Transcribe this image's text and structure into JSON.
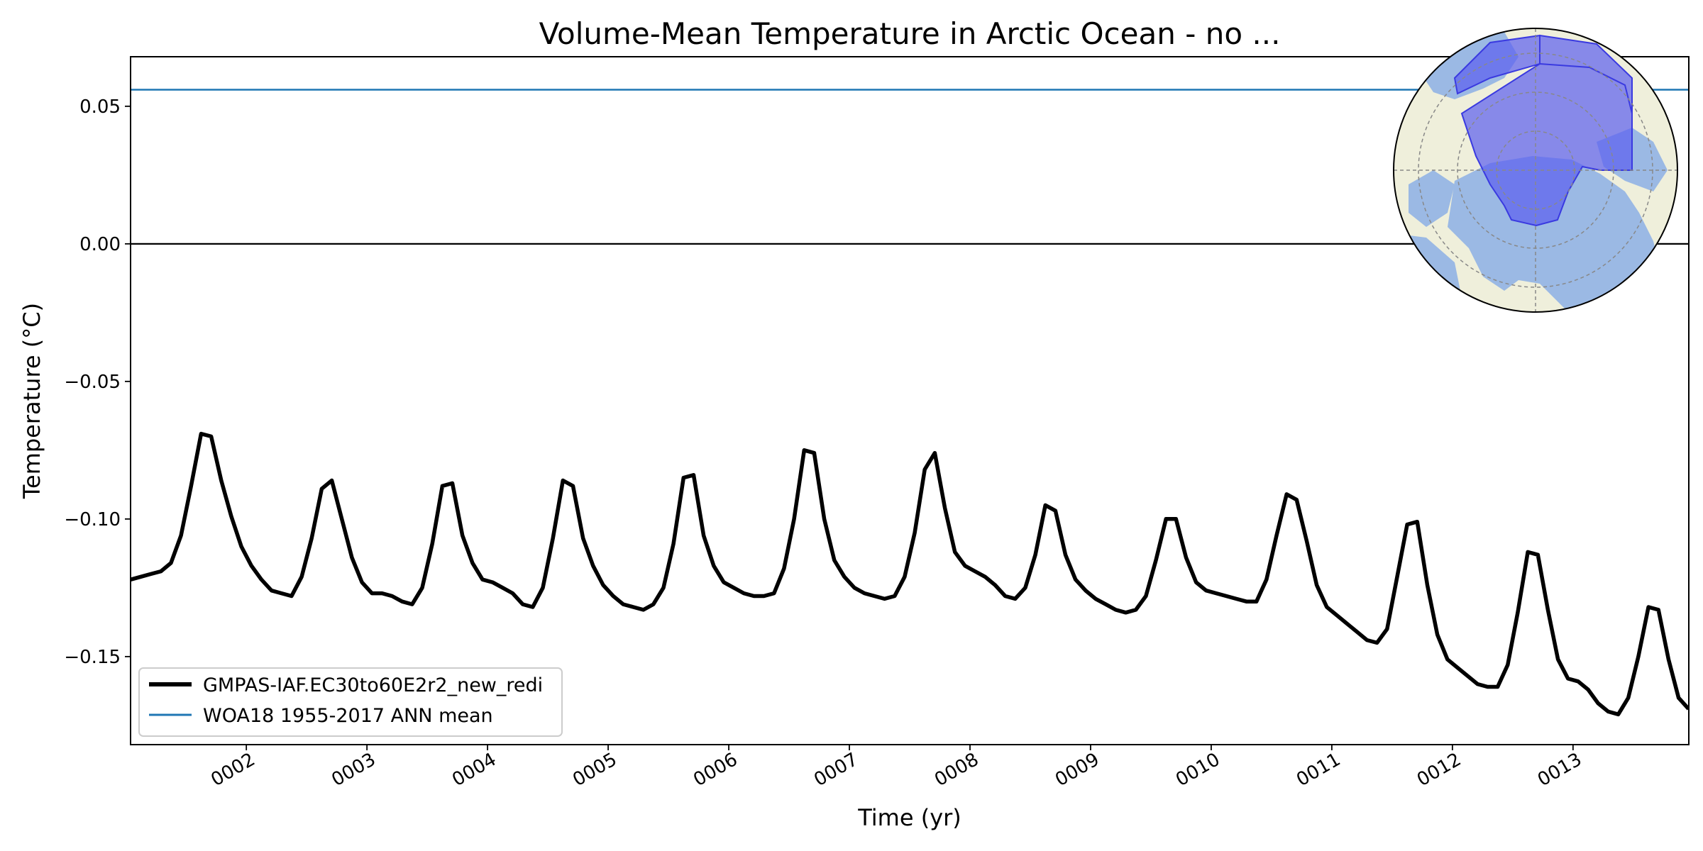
{
  "chart_data": {
    "type": "line",
    "title": "Volume-Mean Temperature in Arctic Ocean - no ...",
    "xlabel": "Time (yr)",
    "ylabel": "Temperature (°C)",
    "xlim": [
      1.04,
      13.96
    ],
    "ylim": [
      -0.182,
      0.068
    ],
    "x_ticks": [
      2,
      3,
      4,
      5,
      6,
      7,
      8,
      9,
      10,
      11,
      12,
      13
    ],
    "x_tick_labels": [
      "0002",
      "0003",
      "0004",
      "0005",
      "0006",
      "0007",
      "0008",
      "0009",
      "0010",
      "0011",
      "0012",
      "0013"
    ],
    "y_ticks": [
      0.05,
      0.0,
      -0.05,
      -0.1,
      -0.15
    ],
    "y_tick_labels": [
      "0.05",
      "0.00",
      "−0.05",
      "−0.10",
      "−0.15"
    ],
    "grid": false,
    "legend": "lower-left",
    "zero_line": 0.0,
    "series": [
      {
        "name": "GMPAS-IAF.EC30to60E2r2_new_redi",
        "color": "#000000",
        "month_values": [
          [
            -0.122,
            -0.121,
            -0.12,
            -0.119,
            -0.116,
            -0.106,
            -0.088,
            -0.069,
            -0.07,
            -0.086,
            -0.099,
            -0.11
          ],
          [
            -0.117,
            -0.122,
            -0.126,
            -0.127,
            -0.128,
            -0.121,
            -0.107,
            -0.089,
            -0.086,
            -0.1,
            -0.114,
            -0.123
          ],
          [
            -0.127,
            -0.127,
            -0.128,
            -0.13,
            -0.131,
            -0.125,
            -0.109,
            -0.088,
            -0.087,
            -0.106,
            -0.116,
            -0.122
          ],
          [
            -0.123,
            -0.125,
            -0.127,
            -0.131,
            -0.132,
            -0.125,
            -0.107,
            -0.086,
            -0.088,
            -0.107,
            -0.117,
            -0.124
          ],
          [
            -0.128,
            -0.131,
            -0.132,
            -0.133,
            -0.131,
            -0.125,
            -0.109,
            -0.085,
            -0.084,
            -0.106,
            -0.117,
            -0.123
          ],
          [
            -0.125,
            -0.127,
            -0.128,
            -0.128,
            -0.127,
            -0.118,
            -0.1,
            -0.075,
            -0.076,
            -0.1,
            -0.115,
            -0.121
          ],
          [
            -0.125,
            -0.127,
            -0.128,
            -0.129,
            -0.128,
            -0.121,
            -0.105,
            -0.082,
            -0.076,
            -0.096,
            -0.112,
            -0.117
          ],
          [
            -0.119,
            -0.121,
            -0.124,
            -0.128,
            -0.129,
            -0.125,
            -0.113,
            -0.095,
            -0.097,
            -0.113,
            -0.122,
            -0.126
          ],
          [
            -0.129,
            -0.131,
            -0.133,
            -0.134,
            -0.133,
            -0.128,
            -0.115,
            -0.1,
            -0.1,
            -0.114,
            -0.123,
            -0.126
          ],
          [
            -0.127,
            -0.128,
            -0.129,
            -0.13,
            -0.13,
            -0.122,
            -0.106,
            -0.091,
            -0.093,
            -0.108,
            -0.124,
            -0.132
          ],
          [
            -0.135,
            -0.138,
            -0.141,
            -0.144,
            -0.145,
            -0.14,
            -0.121,
            -0.102,
            -0.101,
            -0.124,
            -0.142,
            -0.151
          ],
          [
            -0.154,
            -0.157,
            -0.16,
            -0.161,
            -0.161,
            -0.153,
            -0.134,
            -0.112,
            -0.113,
            -0.133,
            -0.151,
            -0.158
          ],
          [
            -0.159,
            -0.162,
            -0.167,
            -0.17,
            -0.171,
            -0.165,
            -0.15,
            -0.132,
            -0.133,
            -0.151,
            -0.165,
            -0.169
          ]
        ]
      },
      {
        "name": "WOA18 1955-2017 ANN mean",
        "color": "#1f77b4",
        "value": 0.056
      }
    ]
  },
  "inset_map": {
    "description": "Arctic region mask",
    "colors": {
      "land": "#efefdb",
      "ocean": "#9bb9e4",
      "region": "#5b5ef0"
    }
  }
}
